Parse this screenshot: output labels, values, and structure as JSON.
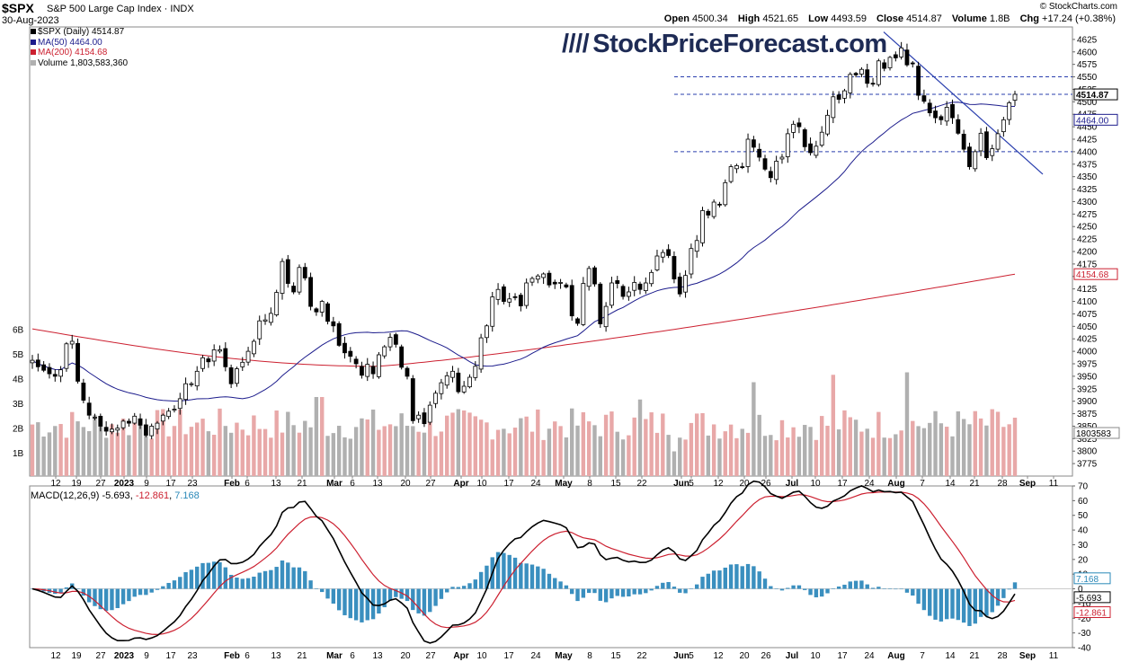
{
  "header": {
    "symbol": "$SPX",
    "name": "S&P 500 Large Cap Index",
    "exchange": "INDX",
    "date": "30-Aug-2023",
    "brand": "© StockCharts.com",
    "open_label": "Open",
    "open": "4500.34",
    "high_label": "High",
    "high": "4521.65",
    "low_label": "Low",
    "low": "4493.59",
    "close_label": "Close",
    "close": "4514.87",
    "volume_label": "Volume",
    "volume": "1.8B",
    "chg_label": "Chg",
    "chg": "+17.24 (+0.38%)"
  },
  "legend": {
    "price": "$SPX (Daily) 4514.87",
    "ma50": "MA(50) 4464.00",
    "ma200": "MA(200) 4154.68",
    "volume": "Volume 1,803,583,360"
  },
  "watermark": "StockPriceForecast.com",
  "macd_legend": {
    "label": "MACD(12,26,9)",
    "macd": "-5.693",
    "signal": "-12.861",
    "hist": "7.168"
  },
  "colors": {
    "up_volume": "#e8a8a8",
    "down_volume": "#b0b0b0",
    "ma50": "#1c1c8c",
    "ma200": "#cc2030",
    "hist": "#3a8fbf",
    "trend": "#2a3fae"
  },
  "chart_data": [
    {
      "type": "candlestick",
      "title": "$SPX (Daily) S&P 500 Large Cap Index",
      "ylim": [
        3750,
        4650
      ],
      "y_ticks": [
        3775,
        3800,
        3825,
        3850,
        3875,
        3900,
        3925,
        3950,
        3975,
        4000,
        4025,
        4050,
        4075,
        4100,
        4125,
        4150,
        4175,
        4200,
        4225,
        4250,
        4275,
        4300,
        4325,
        4350,
        4375,
        4400,
        4425,
        4450,
        4475,
        4500,
        4525,
        4550,
        4575,
        4600,
        4625
      ],
      "x_tick_labels": [
        "12",
        "19",
        "27",
        "2023",
        "9",
        "17",
        "23",
        "Feb",
        "6",
        "13",
        "21",
        "Mar",
        "6",
        "13",
        "20",
        "27",
        "Apr",
        "10",
        "17",
        "24",
        "May",
        "8",
        "15",
        "22",
        "Jun",
        "5",
        "12",
        "20",
        "26",
        "Jul",
        "10",
        "17",
        "24",
        "Aug",
        "7",
        "14",
        "21",
        "28",
        "Sep",
        "11"
      ],
      "closes": [
        3982,
        3969,
        3962,
        3955,
        3950,
        3963,
        4015,
        4020,
        3940,
        3902,
        3872,
        3868,
        3850,
        3840,
        3844,
        3846,
        3860,
        3856,
        3870,
        3852,
        3832,
        3850,
        3856,
        3872,
        3880,
        3884,
        3905,
        3935,
        3935,
        3960,
        3987,
        3979,
        4003,
        4003,
        3969,
        3935,
        3965,
        3978,
        4000,
        4020,
        4061,
        4063,
        4076,
        4118,
        4180,
        4136,
        4119,
        4168,
        4147,
        4090,
        4079,
        4100,
        4060,
        4051,
        4012,
        3997,
        3990,
        3975,
        3952,
        3974,
        3955,
        3993,
        4009,
        4028,
        4014,
        3968,
        3950,
        3861,
        3872,
        3855,
        3892,
        3916,
        3937,
        3951,
        3960,
        3919,
        3930,
        3948,
        3970,
        4027,
        4051,
        4109,
        4124,
        4100,
        4105,
        4109,
        4091,
        4137,
        4146,
        4151,
        4155,
        4133,
        4135,
        4138,
        4129,
        4071,
        4056,
        4136,
        4166,
        4135,
        4055,
        4090,
        4137,
        4136,
        4110,
        4119,
        4138,
        4124,
        4137,
        4158,
        4191,
        4198,
        4192,
        4145,
        4115,
        4152,
        4206,
        4222,
        4282,
        4273,
        4299,
        4294,
        4338,
        4370,
        4372,
        4369,
        4425,
        4409,
        4389,
        4365,
        4348,
        4381,
        4389,
        4436,
        4455,
        4450,
        4410,
        4398,
        4411,
        4439,
        4473,
        4510,
        4505,
        4522,
        4555,
        4554,
        4565,
        4537,
        4537,
        4582,
        4567,
        4589,
        4588,
        4608,
        4574,
        4576,
        4513,
        4501,
        4478,
        4468,
        4464,
        4489,
        4468,
        4437,
        4405,
        4370,
        4400,
        4437,
        4388,
        4406,
        4436,
        4464,
        4498,
        4515
      ],
      "ma50_last": 4464.0,
      "ma200_last": 4154.68,
      "support_resistance": [
        4550,
        4515,
        4400
      ]
    },
    {
      "type": "bar",
      "title": "Volume",
      "y_ticks_label": [
        "1B",
        "2B",
        "3B",
        "4B",
        "5B",
        "6B"
      ],
      "last": "1803583",
      "note": "daily volume bars, pink = up day, grey = down day"
    },
    {
      "type": "line",
      "title": "MACD(12,26,9)",
      "ylim": [
        -40,
        70
      ],
      "y_ticks": [
        -40,
        -30,
        -20,
        -10,
        0,
        10,
        20,
        30,
        40,
        50,
        60,
        70
      ],
      "series": [
        {
          "name": "MACD",
          "last": -5.693
        },
        {
          "name": "Signal",
          "last": -12.861
        },
        {
          "name": "Histogram",
          "last": 7.168
        }
      ]
    }
  ]
}
